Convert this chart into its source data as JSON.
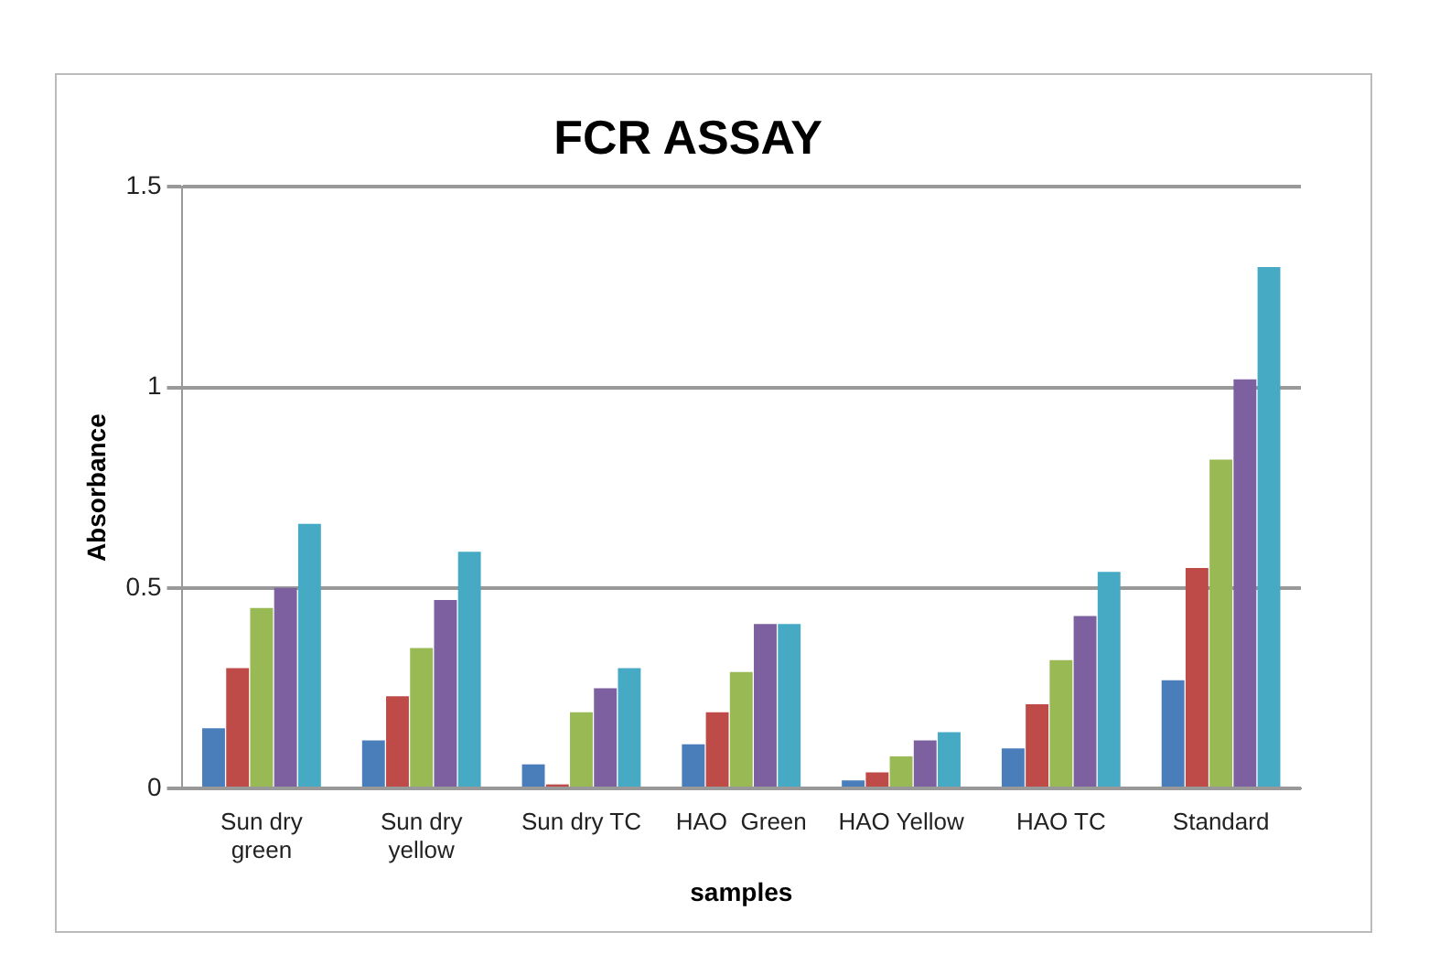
{
  "chart_data": {
    "type": "bar",
    "title": "FCR ASSAY",
    "xlabel": "samples",
    "ylabel": "Absorbance",
    "categories": [
      "Sun dry green",
      "Sun dry yellow",
      "Sun dry TC",
      "HAO  Green",
      "HAO Yellow",
      "HAO TC",
      "Standard"
    ],
    "series": [
      {
        "color": "#4a7ebb",
        "values": [
          0.15,
          0.12,
          0.06,
          0.11,
          0.02,
          0.1,
          0.27
        ]
      },
      {
        "color": "#be4b48",
        "values": [
          0.3,
          0.23,
          0.01,
          0.19,
          0.04,
          0.21,
          0.55
        ]
      },
      {
        "color": "#98b954",
        "values": [
          0.45,
          0.35,
          0.19,
          0.29,
          0.08,
          0.32,
          0.82
        ]
      },
      {
        "color": "#7d60a0",
        "values": [
          0.5,
          0.47,
          0.25,
          0.41,
          0.12,
          0.43,
          1.02
        ]
      },
      {
        "color": "#46aac5",
        "values": [
          0.66,
          0.59,
          0.3,
          0.41,
          0.14,
          0.54,
          1.3
        ]
      }
    ],
    "ylim": [
      0,
      1.5
    ],
    "yticks": [
      0,
      0.5,
      1,
      1.5
    ],
    "grid": "y",
    "legend": false
  }
}
